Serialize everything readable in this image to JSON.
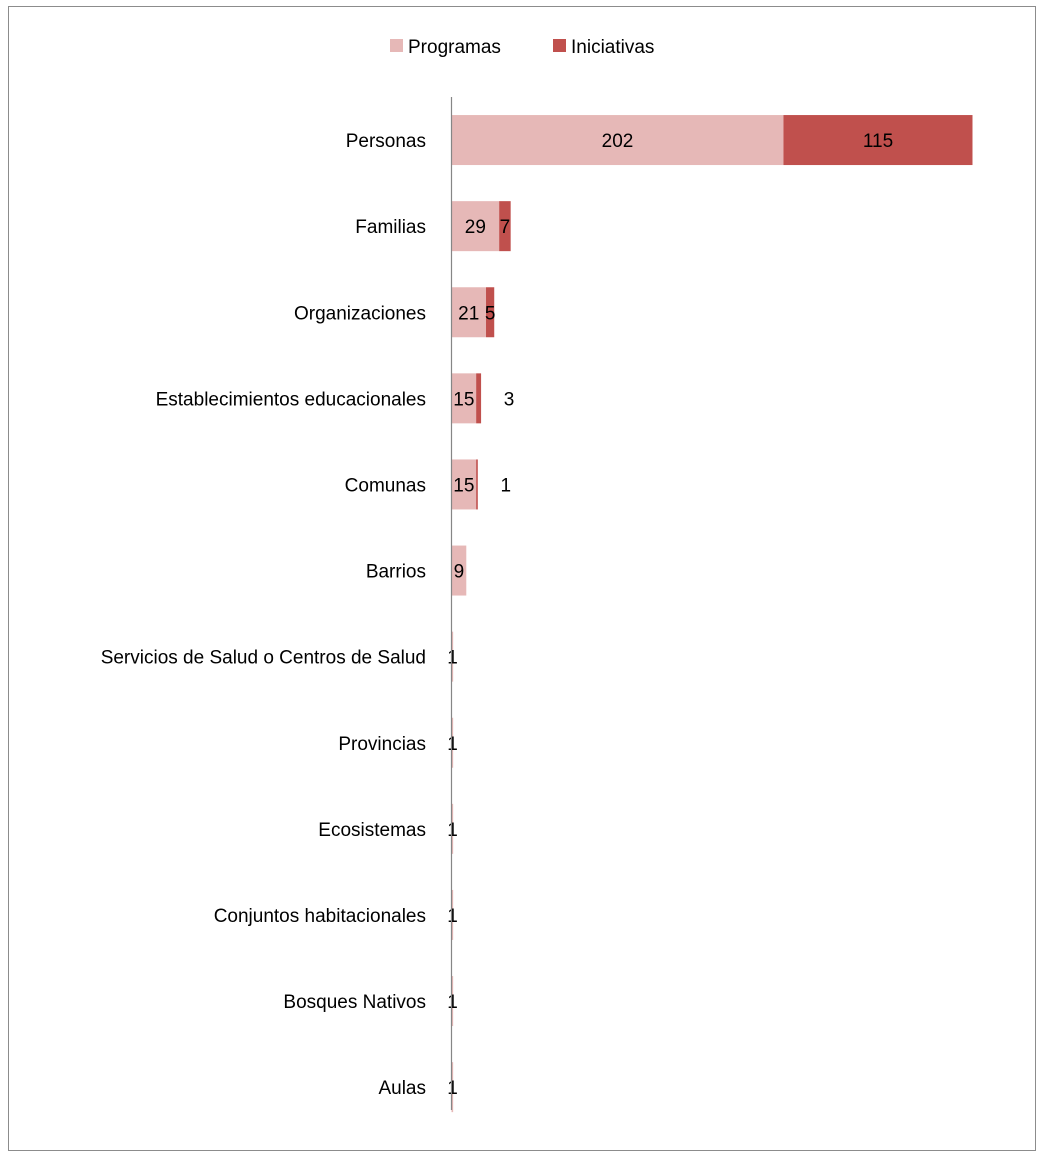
{
  "chart_data": {
    "type": "bar",
    "orientation": "horizontal",
    "stacked": true,
    "categories": [
      "Personas",
      "Familias",
      "Organizaciones",
      "Establecimientos educacionales",
      "Comunas",
      "Barrios",
      "Servicios de Salud o Centros de Salud",
      "Provincias",
      "Ecosistemas",
      "Conjuntos habitacionales",
      "Bosques Nativos",
      "Aulas"
    ],
    "series": [
      {
        "name": "Programas",
        "color": "#e6b8b7",
        "values": [
          202,
          29,
          21,
          15,
          15,
          9,
          1,
          1,
          1,
          1,
          1,
          1
        ]
      },
      {
        "name": "Iniciativas",
        "color": "#c0504d",
        "values": [
          115,
          7,
          5,
          3,
          1,
          null,
          null,
          null,
          null,
          null,
          null,
          null
        ]
      }
    ],
    "xlim": [
      0,
      317
    ],
    "grid": false,
    "legend": {
      "position": "top"
    }
  }
}
